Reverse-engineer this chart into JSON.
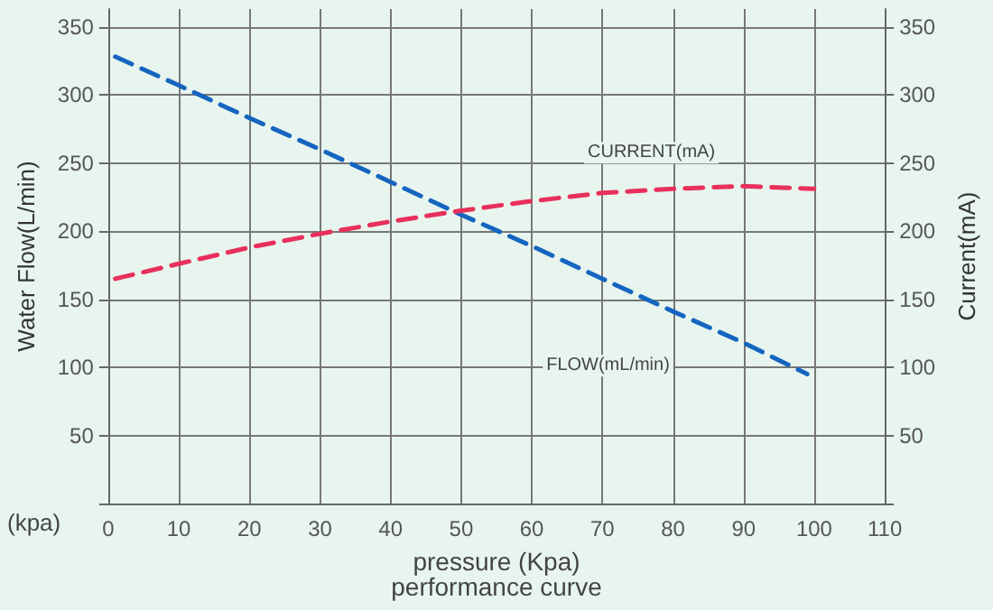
{
  "chart_data": {
    "type": "line",
    "title": "performance curve",
    "xlabel": "pressure (Kpa)",
    "ylabel": "Water Flow(L/min)",
    "y2label": "Current(mA)",
    "annotations": [
      "(kpa)"
    ],
    "xlim": [
      0,
      110
    ],
    "xticks": [
      0,
      10,
      20,
      30,
      40,
      50,
      60,
      70,
      80,
      90,
      100,
      110
    ],
    "ylim": [
      0,
      363
    ],
    "yticks": [
      {
        "value": 0,
        "label": null
      },
      50,
      100,
      150,
      200,
      250,
      300,
      350
    ],
    "y2lim": [
      0,
      363
    ],
    "y2ticks": [
      {
        "value": 0,
        "label": null
      },
      50,
      100,
      150,
      200,
      250,
      300,
      350
    ],
    "grid": true,
    "legend": false,
    "marker": "none",
    "line_style": "dashed",
    "series": [
      {
        "name": "FLOW(mL/min)",
        "color": "#1565c0",
        "x": [
          1,
          10,
          20,
          30,
          40,
          50,
          60,
          70,
          80,
          90,
          99
        ],
        "values": [
          328,
          307,
          283,
          260,
          236,
          212,
          189,
          165,
          141,
          118,
          95
        ]
      },
      {
        "name": "CURRENT(mA)",
        "color": "#e8305a",
        "x": [
          1,
          10,
          20,
          30,
          40,
          50,
          60,
          70,
          80,
          90,
          100
        ],
        "values": [
          165,
          176,
          188,
          198,
          207,
          215,
          222,
          228,
          231,
          233,
          231
        ]
      }
    ]
  }
}
